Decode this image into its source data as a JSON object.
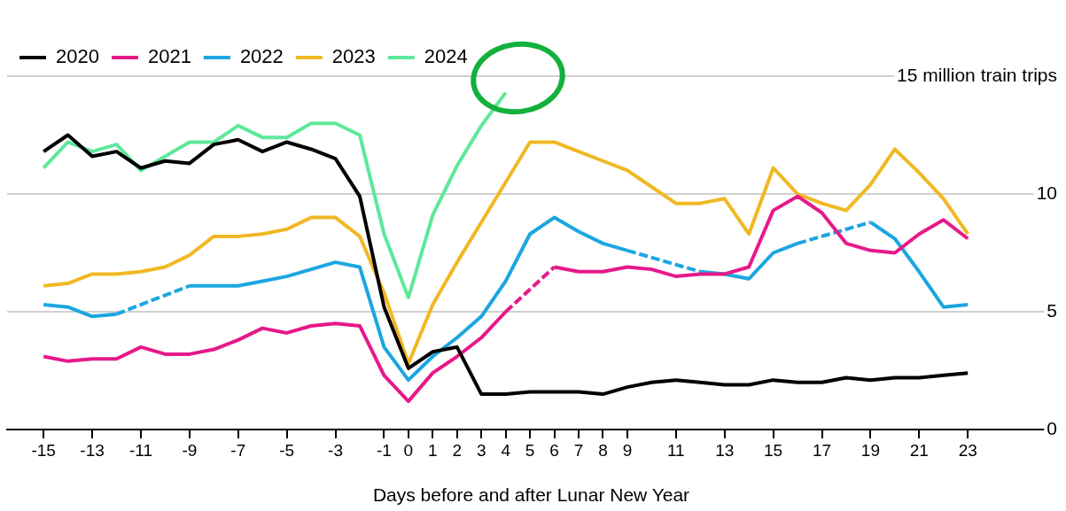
{
  "chart_data": {
    "type": "line",
    "xlabel": "Days before and after Lunar New Year",
    "x": [
      -15,
      -14,
      -13,
      -12,
      -11,
      -10,
      -9,
      -8,
      -7,
      -6,
      -5,
      -4,
      -3,
      -2,
      -1,
      0,
      1,
      2,
      3,
      4,
      5,
      6,
      7,
      8,
      9,
      10,
      11,
      12,
      13,
      14,
      15,
      16,
      17,
      18,
      19,
      20,
      21,
      22,
      23
    ],
    "xlim": [
      -16.5,
      26.6
    ],
    "xticks": [
      -15,
      -13,
      -11,
      -9,
      -7,
      -5,
      -3,
      -1,
      0,
      1,
      2,
      3,
      4,
      5,
      6,
      7,
      8,
      9,
      11,
      13,
      15,
      17,
      19,
      21,
      23
    ],
    "ylim": [
      0,
      15
    ],
    "yticks": [
      0,
      5,
      10,
      {
        "value": 15,
        "label": "15 million train trips"
      }
    ],
    "grid": "y",
    "legend": "top left",
    "marker": "none",
    "line_style": "solid",
    "series": [
      {
        "name": "2020",
        "color": "#000000",
        "values": [
          11.8,
          12.5,
          11.6,
          11.8,
          11.1,
          11.4,
          11.3,
          12.1,
          12.3,
          11.8,
          12.2,
          11.9,
          11.5,
          9.9,
          5.2,
          2.6,
          3.3,
          3.5,
          1.5,
          1.5,
          1.6,
          1.6,
          1.6,
          1.5,
          1.8,
          2.0,
          2.1,
          2.0,
          1.9,
          1.9,
          2.1,
          2.0,
          2.0,
          2.2,
          2.1,
          2.2,
          2.2,
          2.3,
          2.4
        ]
      },
      {
        "name": "2021",
        "color": "#e6198a",
        "x": [
          -15,
          -14,
          -13,
          -12,
          -11,
          -10,
          -9,
          -8,
          -7,
          -6,
          -5,
          -4,
          -3,
          -2,
          -1,
          0,
          1,
          2,
          3,
          4,
          6,
          7,
          8,
          9,
          10,
          11,
          12,
          13,
          14,
          15,
          16,
          17,
          18,
          19,
          20,
          21,
          22,
          23
        ],
        "values": [
          3.1,
          2.9,
          3.0,
          3.0,
          3.5,
          3.2,
          3.2,
          3.4,
          3.8,
          4.3,
          4.1,
          4.4,
          4.5,
          4.4,
          2.3,
          1.2,
          2.4,
          3.1,
          3.9,
          5.0,
          6.9,
          6.7,
          6.7,
          6.9,
          6.8,
          6.5,
          6.6,
          6.6,
          6.9,
          9.3,
          9.9,
          9.2,
          7.9,
          7.6,
          7.5,
          8.3,
          8.9,
          8.1
        ]
      },
      {
        "name": "2022",
        "color": "#1ba6e0",
        "x": [
          -15,
          -14,
          -13,
          -12,
          -9,
          -8,
          -7,
          -6,
          -5,
          -4,
          -3,
          -2,
          -1,
          0,
          1,
          2,
          3,
          4,
          5,
          6,
          7,
          8,
          9,
          12,
          13,
          14,
          15,
          16,
          19,
          20,
          21,
          22,
          23
        ],
        "values": [
          5.3,
          5.2,
          4.8,
          4.9,
          6.1,
          6.1,
          6.1,
          6.3,
          6.5,
          6.8,
          7.1,
          6.9,
          3.5,
          2.1,
          3.1,
          3.9,
          4.8,
          6.3,
          8.3,
          9.0,
          8.4,
          7.9,
          7.6,
          6.7,
          6.6,
          6.4,
          7.5,
          7.9,
          8.8,
          8.1,
          6.7,
          5.2,
          5.3
        ]
      },
      {
        "name": "2023",
        "color": "#f0b823",
        "values": [
          6.1,
          6.2,
          6.6,
          6.6,
          6.7,
          6.9,
          7.4,
          8.2,
          8.2,
          8.3,
          8.5,
          9.0,
          9.0,
          8.2,
          5.8,
          2.8,
          5.3,
          7.1,
          8.8,
          10.5,
          12.2,
          12.2,
          11.8,
          11.4,
          11.0,
          10.3,
          9.6,
          9.6,
          9.8,
          8.3,
          11.1,
          10.0,
          9.6,
          9.3,
          10.4,
          11.9,
          10.9,
          9.8,
          8.3
        ]
      },
      {
        "name": "2024",
        "color": "#5ee89a",
        "x": [
          -15,
          -14,
          -13,
          -12,
          -11,
          -10,
          -9,
          -8,
          -7,
          -6,
          -5,
          -4,
          -3,
          -2,
          -1,
          0,
          1,
          2,
          3,
          4
        ],
        "values": [
          11.1,
          12.2,
          11.8,
          12.1,
          11.0,
          11.6,
          12.2,
          12.2,
          12.9,
          12.4,
          12.4,
          13.0,
          13.0,
          12.5,
          8.3,
          5.6,
          9.1,
          11.2,
          12.9,
          14.3
        ]
      }
    ]
  }
}
